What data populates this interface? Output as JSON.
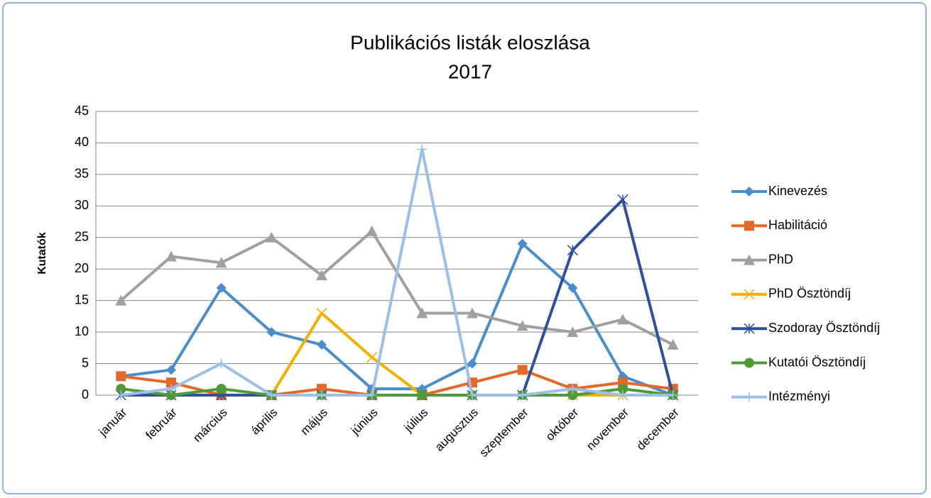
{
  "chart_data": {
    "type": "line",
    "title": "Publikációs listák eloszlása",
    "subtitle": "2017",
    "y_label": "Kutatók",
    "categories": [
      "január",
      "február",
      "március",
      "április",
      "május",
      "június",
      "július",
      "augusztus",
      "szeptember",
      "október",
      "november",
      "december"
    ],
    "ylim": [
      0,
      45
    ],
    "yticks": [
      0,
      5,
      10,
      15,
      20,
      25,
      30,
      35,
      40,
      45
    ],
    "grid": true,
    "legend": "right",
    "series": [
      {
        "name": "Kinevezés",
        "color": "#4a8dc8",
        "marker": "diamond",
        "values": [
          3,
          4,
          17,
          10,
          8,
          1,
          1,
          5,
          24,
          17,
          3,
          0
        ]
      },
      {
        "name": "Habilitáció",
        "color": "#e2692a",
        "marker": "square",
        "values": [
          3,
          2,
          0,
          0,
          1,
          0,
          0,
          2,
          4,
          1,
          2,
          1
        ]
      },
      {
        "name": "PhD",
        "color": "#a0a0a0",
        "marker": "triangle",
        "values": [
          15,
          22,
          21,
          25,
          19,
          26,
          13,
          13,
          11,
          10,
          12,
          8
        ]
      },
      {
        "name": "PhD Ösztöndíj",
        "color": "#f0b000",
        "marker": "x",
        "values": [
          0,
          0,
          0,
          0,
          13,
          6,
          0,
          0,
          0,
          0,
          0,
          0
        ]
      },
      {
        "name": "Szodoray Ösztöndíj",
        "color": "#2f4f9f",
        "marker": "star",
        "values": [
          0,
          0,
          0,
          0,
          0,
          0,
          0,
          0,
          0,
          23,
          31,
          0
        ]
      },
      {
        "name": "Kutatói Ösztöndíj",
        "color": "#4e9a3a",
        "marker": "circle",
        "values": [
          1,
          0,
          1,
          0,
          0,
          0,
          0,
          0,
          0,
          0,
          1,
          0
        ]
      },
      {
        "name": "Intézményi",
        "color": "#9dbee6",
        "marker": "plus",
        "values": [
          0,
          1,
          5,
          0,
          0,
          0,
          39,
          0,
          0,
          1,
          0,
          0
        ]
      }
    ]
  }
}
